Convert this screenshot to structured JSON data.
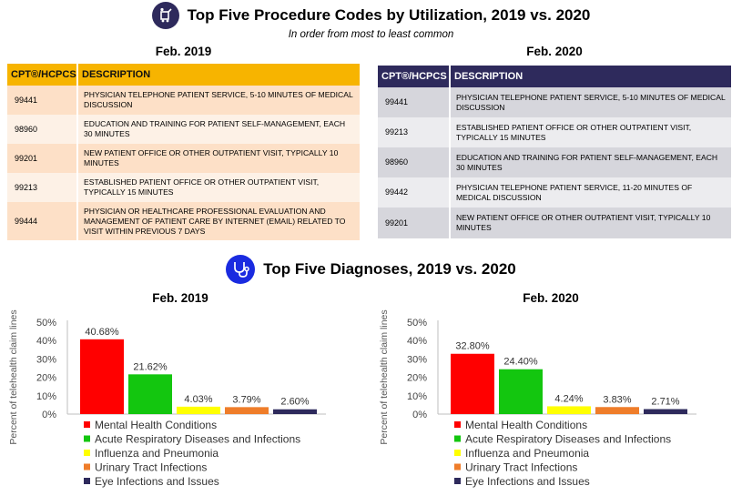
{
  "procedures": {
    "title": "Top Five Procedure Codes by Utilization, 2019 vs. 2020",
    "subtitle": "In order from most to least common",
    "icon": "medical-cart-icon",
    "tables": [
      {
        "title": "Feb. 2019",
        "header_color": "#f7b400",
        "columns": [
          "CPT®/HCPCS",
          "DESCRIPTION"
        ],
        "rows": [
          {
            "code": "99441",
            "description": "PHYSICIAN TELEPHONE PATIENT SERVICE, 5-10 MINUTES OF MEDICAL DISCUSSION"
          },
          {
            "code": "98960",
            "description": "EDUCATION AND TRAINING FOR PATIENT SELF-MANAGEMENT, EACH 30 MINUTES"
          },
          {
            "code": "99201",
            "description": "NEW PATIENT OFFICE OR OTHER OUTPATIENT VISIT, TYPICALLY 10 MINUTES"
          },
          {
            "code": "99213",
            "description": "ESTABLISHED PATIENT OFFICE OR OTHER OUTPATIENT VISIT, TYPICALLY 15 MINUTES"
          },
          {
            "code": "99444",
            "description": "PHYSICIAN OR HEALTHCARE PROFESSIONAL EVALUATION AND MANAGEMENT OF PATIENT CARE BY INTERNET (EMAIL) RELATED TO VISIT WITHIN PREVIOUS 7 DAYS"
          }
        ]
      },
      {
        "title": "Feb. 2020",
        "header_color": "#2e2a5c",
        "columns": [
          "CPT®/HCPCS",
          "DESCRIPTION"
        ],
        "rows": [
          {
            "code": "99441",
            "description": "PHYSICIAN TELEPHONE PATIENT SERVICE, 5-10 MINUTES OF MEDICAL DISCUSSION"
          },
          {
            "code": "99213",
            "description": "ESTABLISHED PATIENT OFFICE OR OTHER OUTPATIENT VISIT, TYPICALLY 15 MINUTES"
          },
          {
            "code": "98960",
            "description": "EDUCATION AND TRAINING FOR PATIENT SELF-MANAGEMENT, EACH 30 MINUTES"
          },
          {
            "code": "99442",
            "description": "PHYSICIAN TELEPHONE PATIENT SERVICE, 11-20 MINUTES OF MEDICAL DISCUSSION"
          },
          {
            "code": "99201",
            "description": "NEW PATIENT OFFICE OR OTHER OUTPATIENT VISIT, TYPICALLY 10 MINUTES"
          }
        ]
      }
    ]
  },
  "diagnoses": {
    "title": "Top Five Diagnoses, 2019 vs. 2020",
    "icon": "stethoscope-icon"
  },
  "colors": {
    "icon_circle": "#2e2a5c",
    "stethoscope_circle": "#1a2be0"
  },
  "chart_data": [
    {
      "type": "bar",
      "title": "Feb. 2019",
      "ylabel": "Percent of telehealth claim lines",
      "ylim": [
        0,
        50
      ],
      "yticks": [
        "0%",
        "10%",
        "20%",
        "30%",
        "40%",
        "50%"
      ],
      "categories": [
        "Mental Health Conditions",
        "Acute Respiratory Diseases and Infections",
        "Influenza and Pneumonia",
        "Urinary Tract Infections",
        "Eye Infections and Issues"
      ],
      "values": [
        40.68,
        21.62,
        4.03,
        3.79,
        2.6
      ],
      "value_labels": [
        "40.68%",
        "21.62%",
        "4.03%",
        "3.79%",
        "2.60%"
      ],
      "colors": [
        "#ff0000",
        "#13c60f",
        "#ffff00",
        "#ef7d2a",
        "#2e2a5c"
      ],
      "grid": false,
      "legend": "bottom"
    },
    {
      "type": "bar",
      "title": "Feb. 2020",
      "ylabel": "Percent of telehealth claim lines",
      "ylim": [
        0,
        50
      ],
      "yticks": [
        "0%",
        "10%",
        "20%",
        "30%",
        "40%",
        "50%"
      ],
      "categories": [
        "Mental Health Conditions",
        "Acute Respiratory Diseases and Infections",
        "Influenza and Pneumonia",
        "Urinary Tract Infections",
        "Eye Infections and Issues"
      ],
      "values": [
        32.8,
        24.4,
        4.24,
        3.83,
        2.71
      ],
      "value_labels": [
        "32.80%",
        "24.40%",
        "4.24%",
        "3.83%",
        "2.71%"
      ],
      "colors": [
        "#ff0000",
        "#13c60f",
        "#ffff00",
        "#ef7d2a",
        "#2e2a5c"
      ],
      "grid": false,
      "legend": "bottom"
    }
  ]
}
